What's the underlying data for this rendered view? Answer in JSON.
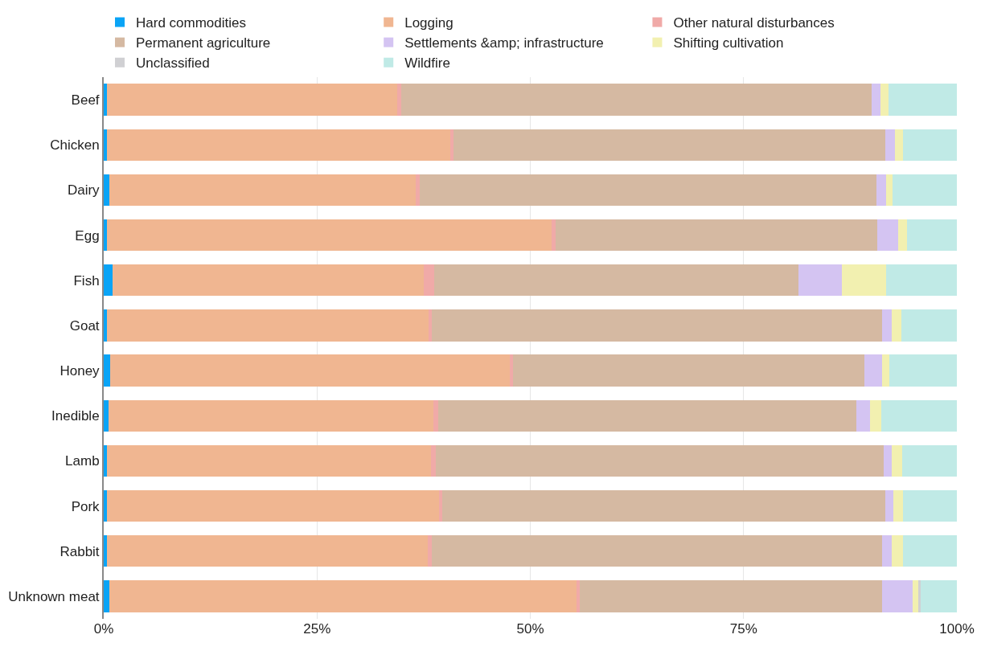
{
  "chart_data": {
    "type": "bar",
    "orientation": "horizontal",
    "stacked": true,
    "categories": [
      "Beef",
      "Chicken",
      "Dairy",
      "Egg",
      "Fish",
      "Goat",
      "Honey",
      "Inedible",
      "Lamb",
      "Pork",
      "Rabbit",
      "Unknown meat"
    ],
    "series": [
      {
        "name": "Hard commodities",
        "color": "#0aa4f6",
        "values": [
          0.4,
          0.4,
          0.7,
          0.4,
          1.0,
          0.4,
          0.8,
          0.6,
          0.4,
          0.4,
          0.4,
          0.7
        ]
      },
      {
        "name": "Logging",
        "color": "#f0b691",
        "values": [
          34.0,
          40.2,
          35.9,
          52.1,
          36.5,
          37.7,
          46.8,
          38.0,
          38.0,
          38.9,
          37.6,
          54.7
        ]
      },
      {
        "name": "Other natural disturbances",
        "color": "#f0aaa8",
        "values": [
          0.5,
          0.4,
          0.4,
          0.5,
          1.2,
          0.4,
          0.4,
          0.6,
          0.5,
          0.4,
          0.5,
          0.4
        ]
      },
      {
        "name": "Permanent agriculture",
        "color": "#d5b9a2",
        "values": [
          55.1,
          50.6,
          53.6,
          37.7,
          42.7,
          52.7,
          41.2,
          49.0,
          52.5,
          51.9,
          52.7,
          35.4
        ]
      },
      {
        "name": "Settlements &amp; infrastructure",
        "color": "#d4c4f2",
        "values": [
          1.0,
          1.1,
          1.1,
          2.4,
          5.1,
          1.2,
          2.0,
          1.6,
          1.0,
          1.0,
          1.2,
          3.6
        ]
      },
      {
        "name": "Shifting cultivation",
        "color": "#f2f0b0",
        "values": [
          1.0,
          1.0,
          0.8,
          1.1,
          5.2,
          1.1,
          0.9,
          1.3,
          1.2,
          1.1,
          1.3,
          0.7
        ]
      },
      {
        "name": "Unclassified",
        "color": "#d0d0d3",
        "values": [
          0,
          0,
          0,
          0,
          0,
          0,
          0,
          0,
          0,
          0,
          0,
          0.3
        ]
      },
      {
        "name": "Wildfire",
        "color": "#c0eae6",
        "values": [
          8.0,
          6.3,
          7.5,
          5.8,
          8.3,
          6.5,
          7.9,
          8.9,
          6.4,
          6.3,
          6.3,
          4.2
        ]
      }
    ],
    "xlim": [
      0,
      100
    ],
    "xticks": [
      {
        "value": 0,
        "label": "0%"
      },
      {
        "value": 25,
        "label": "25%"
      },
      {
        "value": 50,
        "label": "50%"
      },
      {
        "value": 75,
        "label": "75%"
      },
      {
        "value": 100,
        "label": "100%"
      }
    ],
    "grid": "x",
    "legend": "top"
  }
}
